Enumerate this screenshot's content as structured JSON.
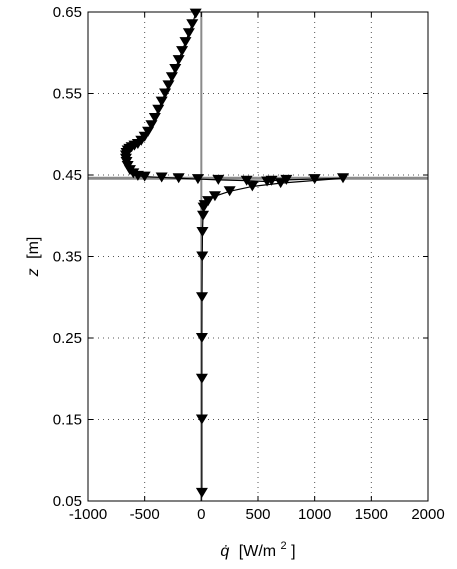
{
  "chart_data": {
    "type": "scatter",
    "title": "",
    "xlabel_symbol": "q̇",
    "xlabel_unit": "[W/m",
    "xlabel_unit_sup": "2",
    "xlabel_unit_end": "]",
    "ylabel_symbol": "z",
    "ylabel_unit": "[m]",
    "xlim": [
      -1000,
      2000
    ],
    "ylim": [
      0.05,
      0.65
    ],
    "xticks": [
      -1000,
      -500,
      0,
      500,
      1000,
      1500,
      2000
    ],
    "xtick_labels": [
      "-1000",
      "-500",
      "0",
      "500",
      "1000",
      "1500",
      "2000"
    ],
    "yticks": [
      0.05,
      0.15,
      0.25,
      0.35,
      0.45,
      0.55,
      0.65
    ],
    "ytick_labels": [
      "0.05",
      "0.15",
      "0.25",
      "0.35",
      "0.45",
      "0.55",
      "0.65"
    ],
    "grid": true,
    "marker": "triangle-down",
    "reference_lines": {
      "x": 0,
      "y": 0.446
    },
    "series": [
      {
        "x": [
          -50,
          -80,
          -110,
          -140,
          -170,
          -200,
          -230,
          -260,
          -290,
          -320,
          -350,
          -380,
          -410,
          -440,
          -470,
          -500,
          -530,
          -560,
          -590,
          -615,
          -635,
          -650,
          -660,
          -665,
          -665,
          -660,
          -650,
          -630,
          -600,
          -560,
          -500,
          -350,
          -200,
          -30,
          150,
          400,
          580,
          620,
          750,
          1000,
          1250,
          700,
          450,
          250,
          120,
          60,
          30,
          20,
          15,
          10,
          8,
          6,
          5,
          5,
          5,
          5
        ],
        "y": [
          0.648,
          0.635,
          0.624,
          0.613,
          0.602,
          0.591,
          0.58,
          0.57,
          0.56,
          0.55,
          0.54,
          0.53,
          0.52,
          0.511,
          0.503,
          0.497,
          0.492,
          0.488,
          0.486,
          0.484,
          0.482,
          0.48,
          0.477,
          0.474,
          0.47,
          0.466,
          0.461,
          0.456,
          0.452,
          0.449,
          0.448,
          0.447,
          0.446,
          0.445,
          0.444,
          0.443,
          0.442,
          0.443,
          0.444,
          0.445,
          0.446,
          0.44,
          0.436,
          0.43,
          0.424,
          0.418,
          0.413,
          0.41,
          0.4,
          0.38,
          0.35,
          0.3,
          0.25,
          0.2,
          0.15,
          0.06
        ]
      }
    ]
  }
}
